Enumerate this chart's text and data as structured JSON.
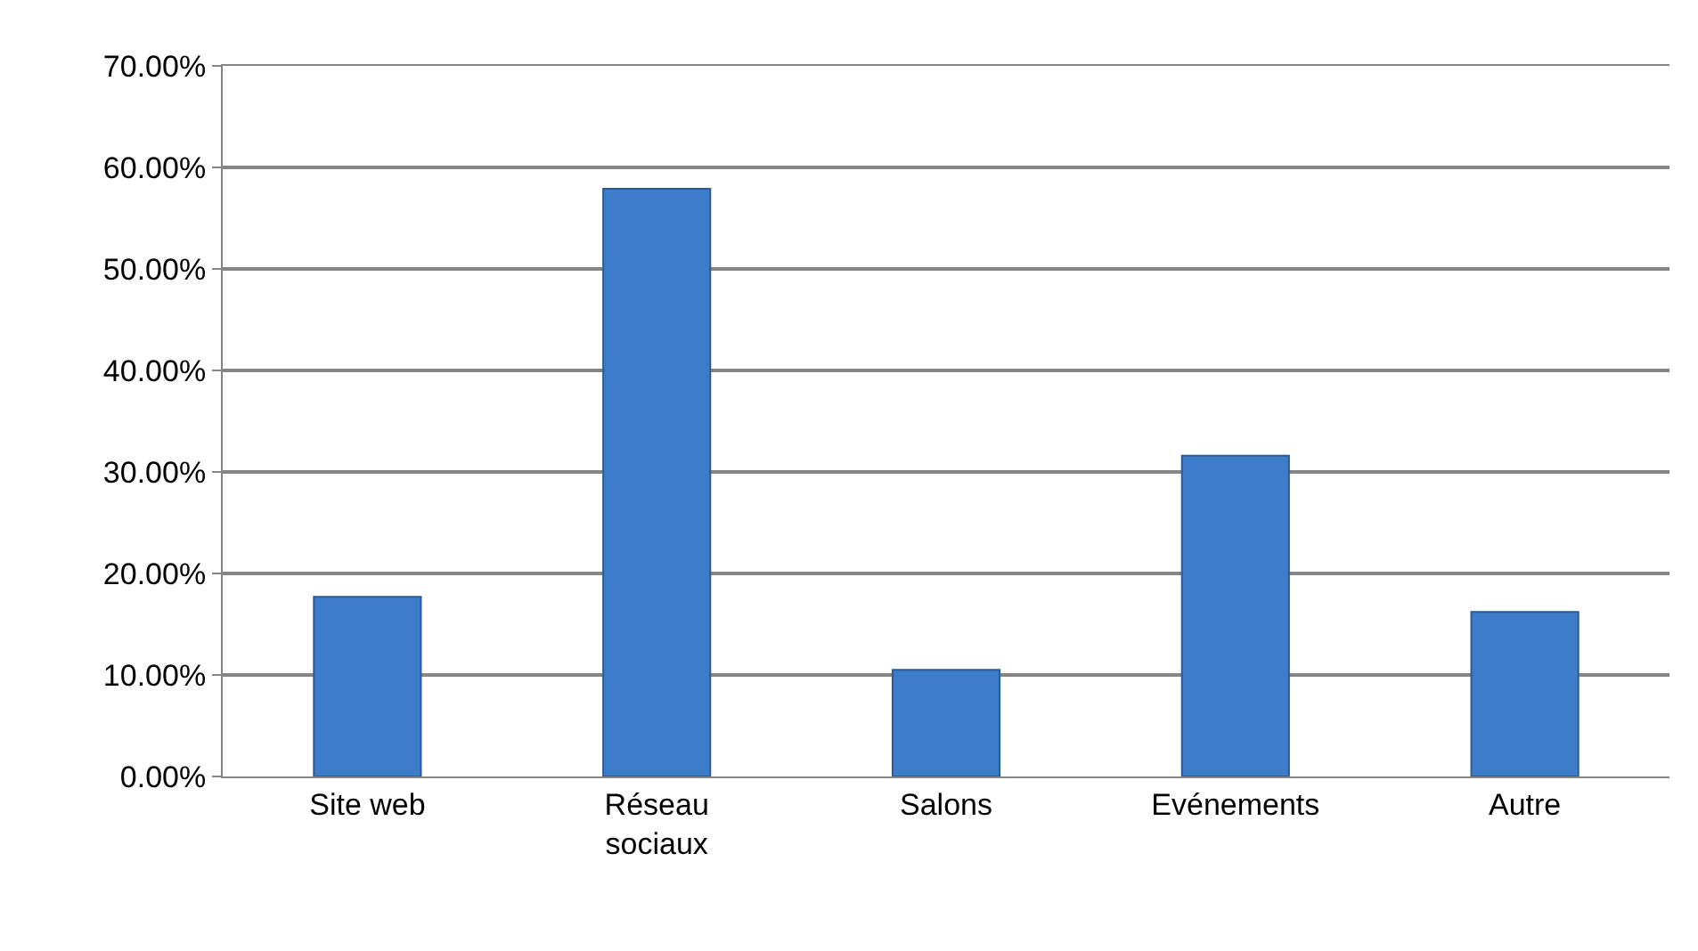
{
  "chart_data": {
    "type": "bar",
    "categories": [
      "Site web",
      "Réseau\nsociaux",
      "Salons",
      "Evénements",
      "Autre"
    ],
    "values": [
      17.7,
      57.9,
      10.5,
      31.6,
      16.2
    ],
    "color": "#3d7cc9",
    "ylim": [
      0,
      70
    ],
    "yticks": [
      {
        "value": 0,
        "label": "0.00%"
      },
      {
        "value": 10,
        "label": "10.00%"
      },
      {
        "value": 20,
        "label": "20.00%"
      },
      {
        "value": 30,
        "label": "30.00%"
      },
      {
        "value": 40,
        "label": "40.00%"
      },
      {
        "value": 50,
        "label": "50.00%"
      },
      {
        "value": 60,
        "label": "60.00%"
      },
      {
        "value": 70,
        "label": "70.00%"
      }
    ],
    "grid": "y"
  }
}
